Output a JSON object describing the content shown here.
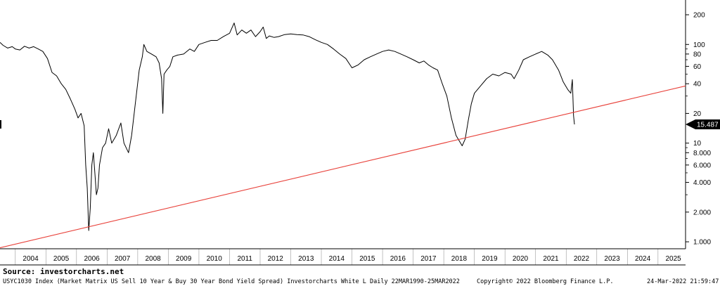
{
  "chart_data": {
    "type": "line",
    "title": "",
    "xlabel": "",
    "ylabel": "",
    "y_scale": "log",
    "ylim": [
      0.85,
      260
    ],
    "xlim": [
      2003.5,
      2025.9
    ],
    "grid": "vertical lines at year boundaries",
    "y_ticks": [
      {
        "value": 1,
        "label": "1.000"
      },
      {
        "value": 2,
        "label": "2.000"
      },
      {
        "value": 4,
        "label": "4.000"
      },
      {
        "value": 6,
        "label": "6.000"
      },
      {
        "value": 8,
        "label": "8.000"
      },
      {
        "value": 10,
        "label": "10"
      },
      {
        "value": 20,
        "label": "20"
      },
      {
        "value": 40,
        "label": "40"
      },
      {
        "value": 60,
        "label": "60"
      },
      {
        "value": 80,
        "label": "80"
      },
      {
        "value": 100,
        "label": "100"
      },
      {
        "value": 200,
        "label": "200"
      }
    ],
    "x_ticks": [
      "2004",
      "2005",
      "2006",
      "2007",
      "2008",
      "2009",
      "2010",
      "2011",
      "2012",
      "2013",
      "2014",
      "2015",
      "2016",
      "2017",
      "2018",
      "2019",
      "2020",
      "2021",
      "2022",
      "2023",
      "2024",
      "2025"
    ],
    "series": [
      {
        "name": "",
        "color": "#000000",
        "points": [
          [
            2003.5,
            105
          ],
          [
            2003.6,
            98
          ],
          [
            2003.75,
            92
          ],
          [
            2003.9,
            95
          ],
          [
            2004.0,
            90
          ],
          [
            2004.15,
            88
          ],
          [
            2004.3,
            96
          ],
          [
            2004.45,
            92
          ],
          [
            2004.6,
            95
          ],
          [
            2004.75,
            90
          ],
          [
            2004.9,
            85
          ],
          [
            2005.05,
            72
          ],
          [
            2005.2,
            52
          ],
          [
            2005.35,
            48
          ],
          [
            2005.5,
            40
          ],
          [
            2005.65,
            35
          ],
          [
            2005.8,
            28
          ],
          [
            2005.95,
            22
          ],
          [
            2006.05,
            18
          ],
          [
            2006.15,
            20
          ],
          [
            2006.25,
            15
          ],
          [
            2006.3,
            6
          ],
          [
            2006.35,
            3.5
          ],
          [
            2006.4,
            1.3
          ],
          [
            2006.45,
            2.2
          ],
          [
            2006.5,
            6
          ],
          [
            2006.55,
            8
          ],
          [
            2006.6,
            5
          ],
          [
            2006.65,
            3.0
          ],
          [
            2006.7,
            3.5
          ],
          [
            2006.75,
            6
          ],
          [
            2006.85,
            9
          ],
          [
            2006.95,
            10
          ],
          [
            2007.05,
            14
          ],
          [
            2007.15,
            10
          ],
          [
            2007.3,
            12
          ],
          [
            2007.45,
            16
          ],
          [
            2007.55,
            10
          ],
          [
            2007.7,
            8
          ],
          [
            2007.8,
            12
          ],
          [
            2007.95,
            30
          ],
          [
            2008.05,
            55
          ],
          [
            2008.15,
            75
          ],
          [
            2008.2,
            100
          ],
          [
            2008.3,
            85
          ],
          [
            2008.45,
            80
          ],
          [
            2008.6,
            75
          ],
          [
            2008.7,
            65
          ],
          [
            2008.78,
            45
          ],
          [
            2008.82,
            20
          ],
          [
            2008.86,
            50
          ],
          [
            2008.95,
            55
          ],
          [
            2009.05,
            60
          ],
          [
            2009.15,
            75
          ],
          [
            2009.3,
            78
          ],
          [
            2009.5,
            80
          ],
          [
            2009.7,
            90
          ],
          [
            2009.85,
            85
          ],
          [
            2010.0,
            100
          ],
          [
            2010.2,
            105
          ],
          [
            2010.4,
            110
          ],
          [
            2010.6,
            110
          ],
          [
            2010.8,
            120
          ],
          [
            2011.0,
            130
          ],
          [
            2011.15,
            165
          ],
          [
            2011.25,
            125
          ],
          [
            2011.4,
            140
          ],
          [
            2011.55,
            130
          ],
          [
            2011.7,
            140
          ],
          [
            2011.85,
            120
          ],
          [
            2012.0,
            135
          ],
          [
            2012.1,
            150
          ],
          [
            2012.2,
            115
          ],
          [
            2012.3,
            122
          ],
          [
            2012.45,
            118
          ],
          [
            2012.6,
            120
          ],
          [
            2012.8,
            126
          ],
          [
            2013.0,
            128
          ],
          [
            2013.2,
            126
          ],
          [
            2013.4,
            125
          ],
          [
            2013.6,
            120
          ],
          [
            2013.8,
            112
          ],
          [
            2014.0,
            105
          ],
          [
            2014.2,
            100
          ],
          [
            2014.4,
            90
          ],
          [
            2014.6,
            80
          ],
          [
            2014.8,
            72
          ],
          [
            2015.0,
            58
          ],
          [
            2015.2,
            62
          ],
          [
            2015.4,
            70
          ],
          [
            2015.6,
            75
          ],
          [
            2015.8,
            80
          ],
          [
            2016.0,
            85
          ],
          [
            2016.2,
            88
          ],
          [
            2016.4,
            85
          ],
          [
            2016.6,
            80
          ],
          [
            2016.8,
            75
          ],
          [
            2017.0,
            70
          ],
          [
            2017.2,
            65
          ],
          [
            2017.35,
            68
          ],
          [
            2017.5,
            62
          ],
          [
            2017.65,
            58
          ],
          [
            2017.8,
            55
          ],
          [
            2017.95,
            40
          ],
          [
            2018.1,
            30
          ],
          [
            2018.25,
            18
          ],
          [
            2018.4,
            12
          ],
          [
            2018.55,
            10
          ],
          [
            2018.6,
            9.4
          ],
          [
            2018.7,
            11
          ],
          [
            2018.8,
            17
          ],
          [
            2018.9,
            25
          ],
          [
            2019.0,
            32
          ],
          [
            2019.2,
            38
          ],
          [
            2019.4,
            45
          ],
          [
            2019.6,
            50
          ],
          [
            2019.8,
            48
          ],
          [
            2020.0,
            52
          ],
          [
            2020.2,
            50
          ],
          [
            2020.3,
            45
          ],
          [
            2020.45,
            55
          ],
          [
            2020.6,
            70
          ],
          [
            2020.8,
            75
          ],
          [
            2021.0,
            80
          ],
          [
            2021.2,
            85
          ],
          [
            2021.4,
            78
          ],
          [
            2021.55,
            70
          ],
          [
            2021.75,
            55
          ],
          [
            2021.9,
            42
          ],
          [
            2022.05,
            35
          ],
          [
            2022.15,
            32
          ],
          [
            2022.2,
            44
          ],
          [
            2022.24,
            19
          ],
          [
            2022.27,
            15.5
          ]
        ]
      },
      {
        "name": "",
        "color": "#e8413a",
        "points": [
          [
            2003.5,
            0.87
          ],
          [
            2025.9,
            38
          ]
        ]
      }
    ],
    "last_value_label": "15.487",
    "legend": "none"
  },
  "footer": {
    "source": "Source: investorcharts.net",
    "description": "USYC1030 Index (Market Matrix US Sell 10 Year & Buy 30 Year Bond Yield Spread) Investorcharts White L  Daily 22MAR1990-25MAR2022",
    "copyright": "Copyright© 2022 Bloomberg Finance L.P.",
    "datetime": "24-Mar-2022 21:59:47"
  },
  "colors": {
    "line": "#000000",
    "trendline": "#e8413a",
    "grid": "#d0d0d0",
    "price_tag": "#000000"
  }
}
